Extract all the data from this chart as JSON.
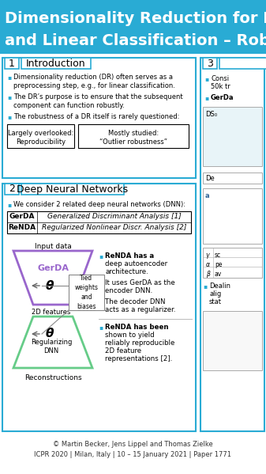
{
  "title_bg": "#29ABD4",
  "white": "#FFFFFF",
  "black": "#000000",
  "cyan": "#29ABD4",
  "gray": "#888888",
  "gerda_color": "#9966CC",
  "renda_color": "#66CC88",
  "bullet_color": "#29ABD4",
  "title_line1": "Dimensionality Reduction for D",
  "title_line2": "and Linear Classification – Rob",
  "sec1_num": "1",
  "sec1_title": "Introduction",
  "sec2_num": "2",
  "sec2_title": "Deep Neural Networks",
  "sec3_num": "3",
  "intro_bullet1": "Dimensionality reduction (DR) often serves as a",
  "intro_bullet1b": "preprocessing step, e.g., for linear classification.",
  "intro_bullet2": "The DR’s purpose is to ensure that the subsequent",
  "intro_bullet2b": "component can function robustly.",
  "intro_bullet3": "The robustness of a DR itself is rarely questioned:",
  "box1a": "Largely overlooked:",
  "box1b": "Reproducibility",
  "box2a": "Mostly studied:",
  "box2b": "“Outlier robustness”",
  "dnn_bullet": "We consider 2 related deep neural networks (DNN):",
  "gerda_short": "GerDA",
  "gerda_long": "Generalized Discriminant Analysis [1]",
  "renda_short": "ReNDA",
  "renda_long": "Regularized Nonlinear Discr. Analysis [2]",
  "input_label": "Input data",
  "gerda_label": "GerDA",
  "theta": "θ",
  "tied_label": "Tied\nweights\nand\nbiases",
  "features_label": "2D features",
  "reg_label": "Regularizing\nDNN",
  "recon_label": "Reconstructions",
  "r1": "ReNDA has a",
  "r2": "deep autoencoder",
  "r3": "architecture.",
  "r4": "It uses GerDA as the",
  "r5": "encoder DNN.",
  "r6": "The decoder DNN",
  "r7": "acts as a regularizer.",
  "r8": "ReNDA has been",
  "r9": "shown to yield",
  "r10": "reliably reproducible",
  "r11": "2D feature",
  "r12": "representations [2].",
  "footer1": "© Martin Becker, Jens Lippel and Thomas Zielke",
  "footer2": "ICPR 2020 | Milan, Italy | 10 – 15 January 2021 | Paper 1771",
  "sec3_b1": "Consi",
  "sec3_b2": "50k tr",
  "sec3_b3": "GerDa"
}
